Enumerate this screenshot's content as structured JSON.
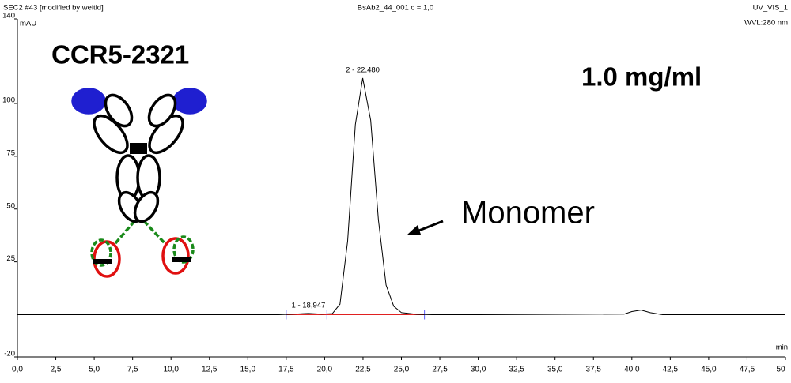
{
  "header": {
    "left": "SEC2 #43 [modified by weitld]",
    "center": "BsAb2_44_001 c = 1,0",
    "right": "UV_VIS_1",
    "wavelength": "WVL:280 nm"
  },
  "chart_data": {
    "type": "line",
    "y_label": "mAU",
    "x_label": "min",
    "sample_name": "CCR5-2321",
    "concentration": "1.0 mg/ml",
    "annotation": "Monomer",
    "xlim": [
      0,
      50
    ],
    "ylim": [
      -20,
      140
    ],
    "xticks": [
      {
        "value": 0,
        "label": "0,0"
      },
      {
        "value": 2.5,
        "label": "2,5"
      },
      {
        "value": 5,
        "label": "5,0"
      },
      {
        "value": 7.5,
        "label": "7,5"
      },
      {
        "value": 10,
        "label": "10,0"
      },
      {
        "value": 12.5,
        "label": "12,5"
      },
      {
        "value": 15,
        "label": "15,0"
      },
      {
        "value": 17.5,
        "label": "17,5"
      },
      {
        "value": 20,
        "label": "20,0"
      },
      {
        "value": 22.5,
        "label": "22,5"
      },
      {
        "value": 25,
        "label": "25,0"
      },
      {
        "value": 27.5,
        "label": "27,5"
      },
      {
        "value": 30,
        "label": "30,0"
      },
      {
        "value": 32.5,
        "label": "32,5"
      },
      {
        "value": 35,
        "label": "35,0"
      },
      {
        "value": 37.5,
        "label": "37,5"
      },
      {
        "value": 40,
        "label": "40,0"
      },
      {
        "value": 42.5,
        "label": "42,5"
      },
      {
        "value": 45,
        "label": "45,0"
      },
      {
        "value": 47.5,
        "label": "47,5"
      },
      50
    ],
    "yticks": [
      -20,
      25,
      50,
      75,
      100,
      140
    ],
    "x": [
      0,
      17,
      18,
      18.947,
      19.8,
      20.5,
      21,
      21.5,
      22,
      22.48,
      23,
      23.5,
      24,
      24.5,
      25,
      26,
      27,
      30,
      39.5,
      40,
      40.6,
      41.2,
      42,
      50
    ],
    "series": [
      {
        "color": "#000000",
        "values": [
          0,
          0,
          0.3,
          0.6,
          0.3,
          0.5,
          5,
          35,
          90,
          112,
          92,
          45,
          14,
          4,
          1,
          0.2,
          0,
          0,
          0.3,
          1.5,
          2.2,
          1,
          0,
          0
        ]
      }
    ],
    "peaks": [
      {
        "label": "1 - 18,947",
        "x": 18.947
      },
      {
        "label": "2 - 22,480",
        "x": 22.48
      }
    ],
    "integration_marks": [
      17.5,
      20.15,
      26.5
    ],
    "integration_color": "#e02020"
  }
}
